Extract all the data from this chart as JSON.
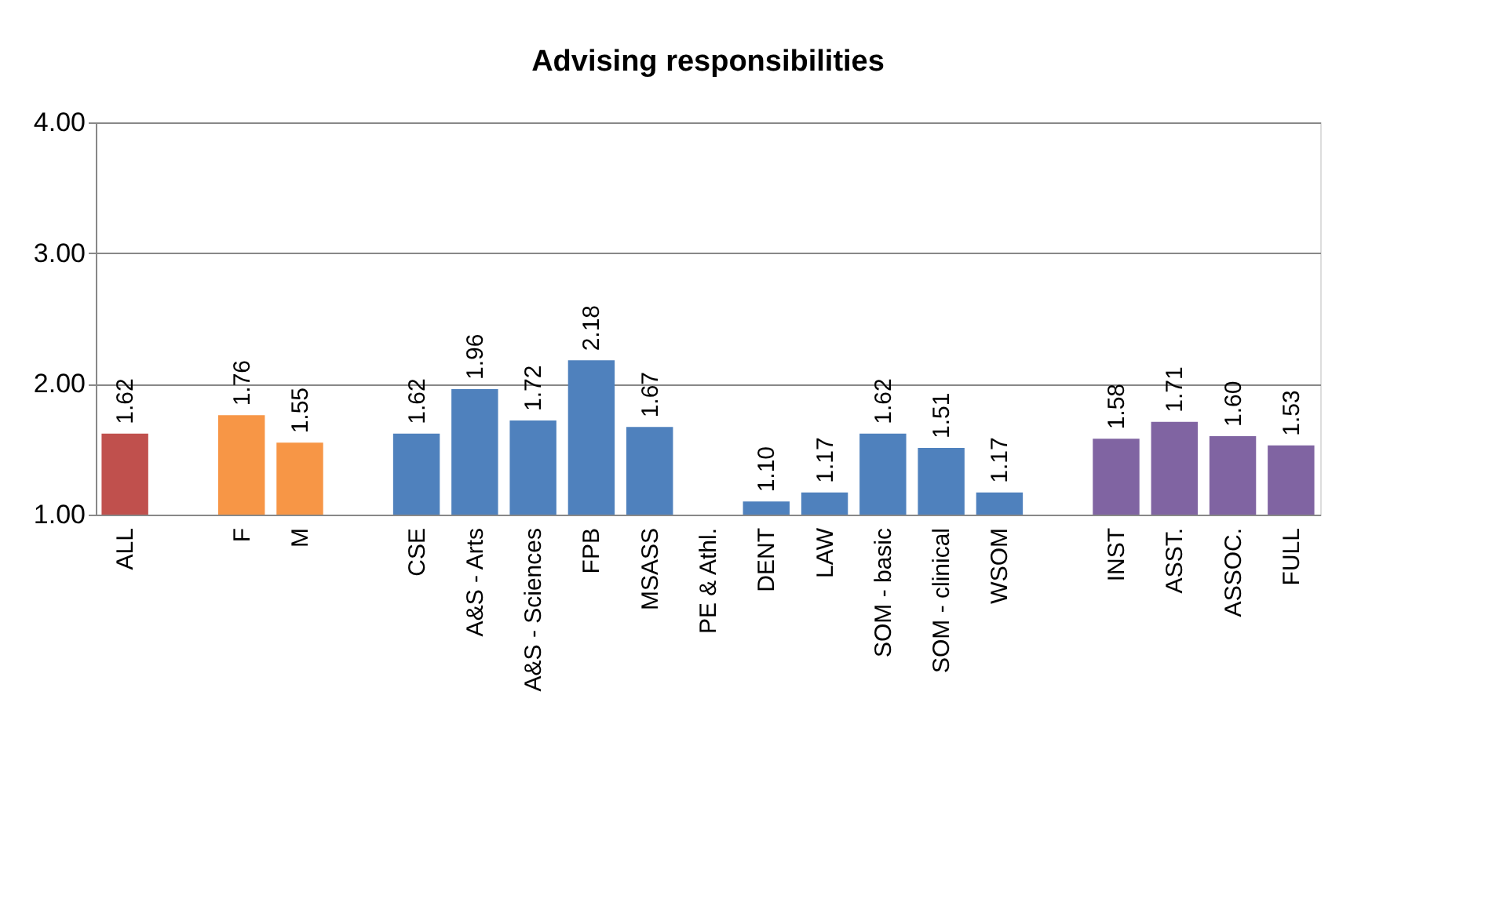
{
  "chart_data": {
    "type": "bar",
    "title": "Advising responsibilities",
    "categories": [
      "ALL",
      null,
      "F",
      "M",
      null,
      "CSE",
      "A&S - Arts",
      "A&S - Sciences",
      "FPB",
      "MSASS",
      "PE & Athl.",
      "DENT",
      "LAW",
      "SOM - basic",
      "SOM - clinical",
      "WSOM",
      null,
      "INST",
      "ASST.",
      "ASSOC.",
      "FULL"
    ],
    "values": [
      1.62,
      null,
      1.76,
      1.55,
      null,
      1.62,
      1.96,
      1.72,
      2.18,
      1.67,
      null,
      1.1,
      1.17,
      1.62,
      1.51,
      1.17,
      null,
      1.58,
      1.71,
      1.6,
      1.53
    ],
    "colors": [
      "#c0504d",
      null,
      "#f79646",
      "#f79646",
      null,
      "#4f81bd",
      "#4f81bd",
      "#4f81bd",
      "#4f81bd",
      "#4f81bd",
      null,
      "#4f81bd",
      "#4f81bd",
      "#4f81bd",
      "#4f81bd",
      "#4f81bd",
      null,
      "#8064a2",
      "#8064a2",
      "#8064a2",
      "#8064a2"
    ],
    "ylim": [
      1,
      4
    ],
    "yticks": [
      {
        "value": 1,
        "label": "1.00"
      },
      {
        "value": 2,
        "label": "2.00"
      },
      {
        "value": 3,
        "label": "3.00"
      },
      {
        "value": 4,
        "label": "4.00"
      }
    ],
    "value_labels": [
      "1.62",
      null,
      "1.76",
      "1.55",
      null,
      "1.62",
      "1.96",
      "1.72",
      "2.18",
      "1.67",
      null,
      "1.10",
      "1.17",
      "1.62",
      "1.51",
      "1.17",
      null,
      "1.58",
      "1.71",
      "1.60",
      "1.53"
    ],
    "grid": "y"
  }
}
